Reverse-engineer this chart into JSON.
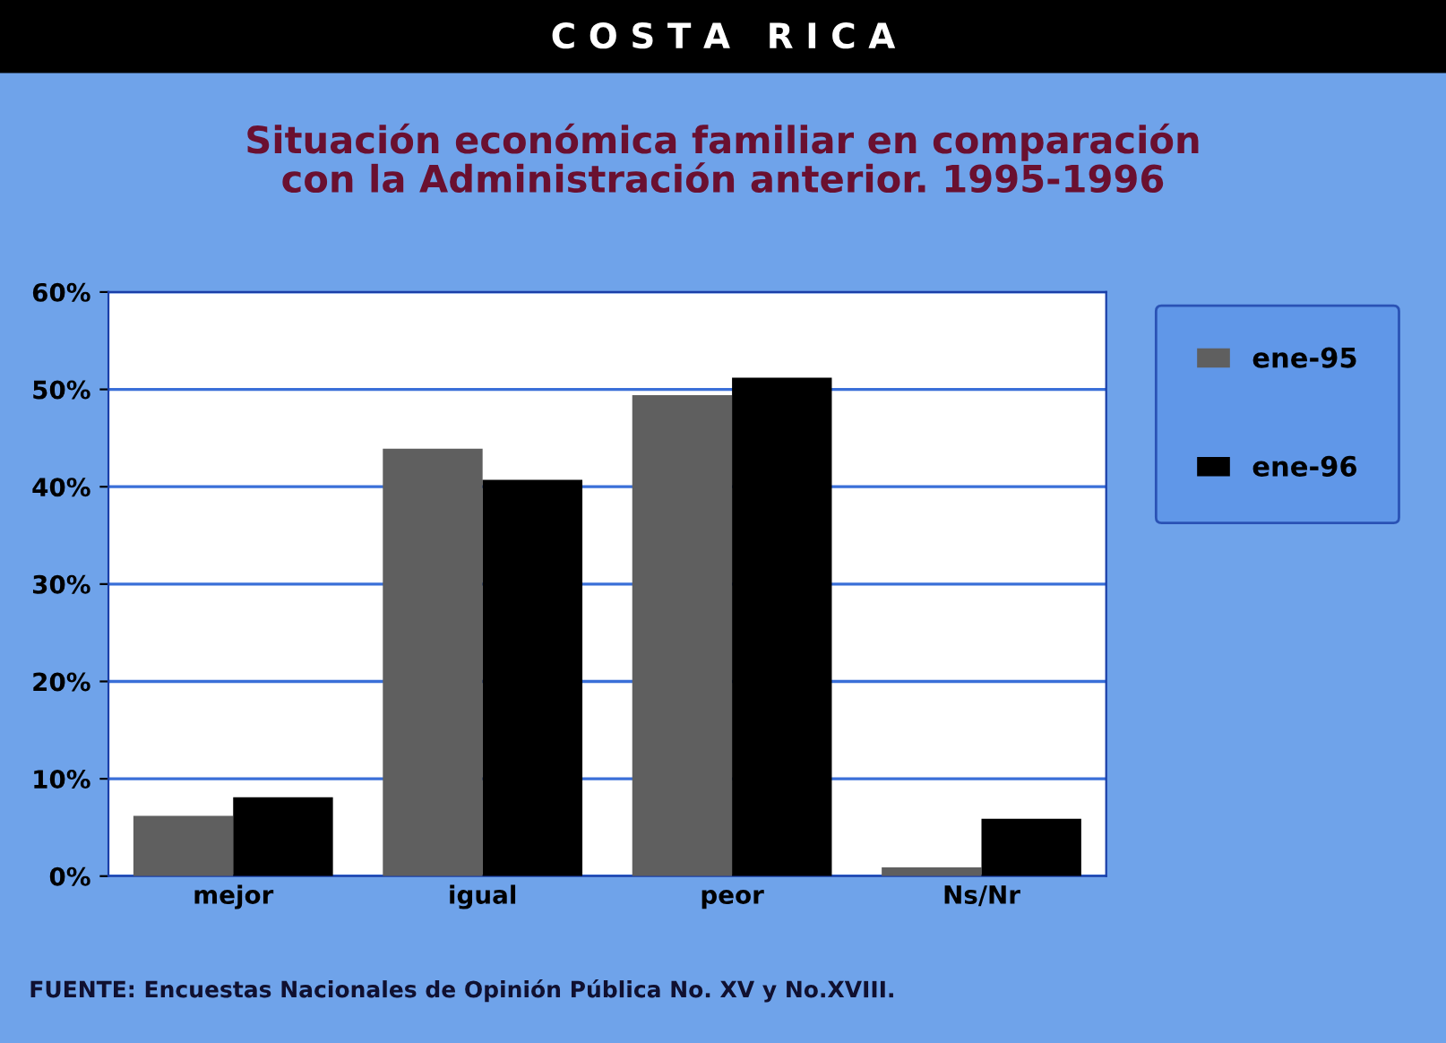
{
  "chart_data": {
    "type": "bar",
    "title": "C O S T A   R I C A",
    "subtitle": "Situación económica familiar en comparación\ncon la Administración anterior. 1995-1996",
    "categories": [
      "mejor",
      "igual",
      "peor",
      "Ns/Nr"
    ],
    "series": [
      {
        "name": "ene-95",
        "color": "#5f5f5f",
        "values": [
          6.2,
          43.9,
          49.4,
          0.9
        ]
      },
      {
        "name": "ene-96",
        "color": "#000000",
        "values": [
          8.1,
          40.7,
          51.2,
          5.9
        ]
      }
    ],
    "ylim": [
      0,
      60
    ],
    "yticks": [
      {
        "value": 0,
        "label": "0%"
      },
      {
        "value": 10,
        "label": "10%"
      },
      {
        "value": 20,
        "label": "20%"
      },
      {
        "value": 30,
        "label": "30%"
      },
      {
        "value": 40,
        "label": "40%"
      },
      {
        "value": 50,
        "label": "50%"
      },
      {
        "value": 60,
        "label": "60%"
      }
    ],
    "grid": "y",
    "legend": "right",
    "annotations": [
      "FUENTE: Encuestas Nacionales de Opinión Pública No. XV y No.XVIII."
    ]
  }
}
